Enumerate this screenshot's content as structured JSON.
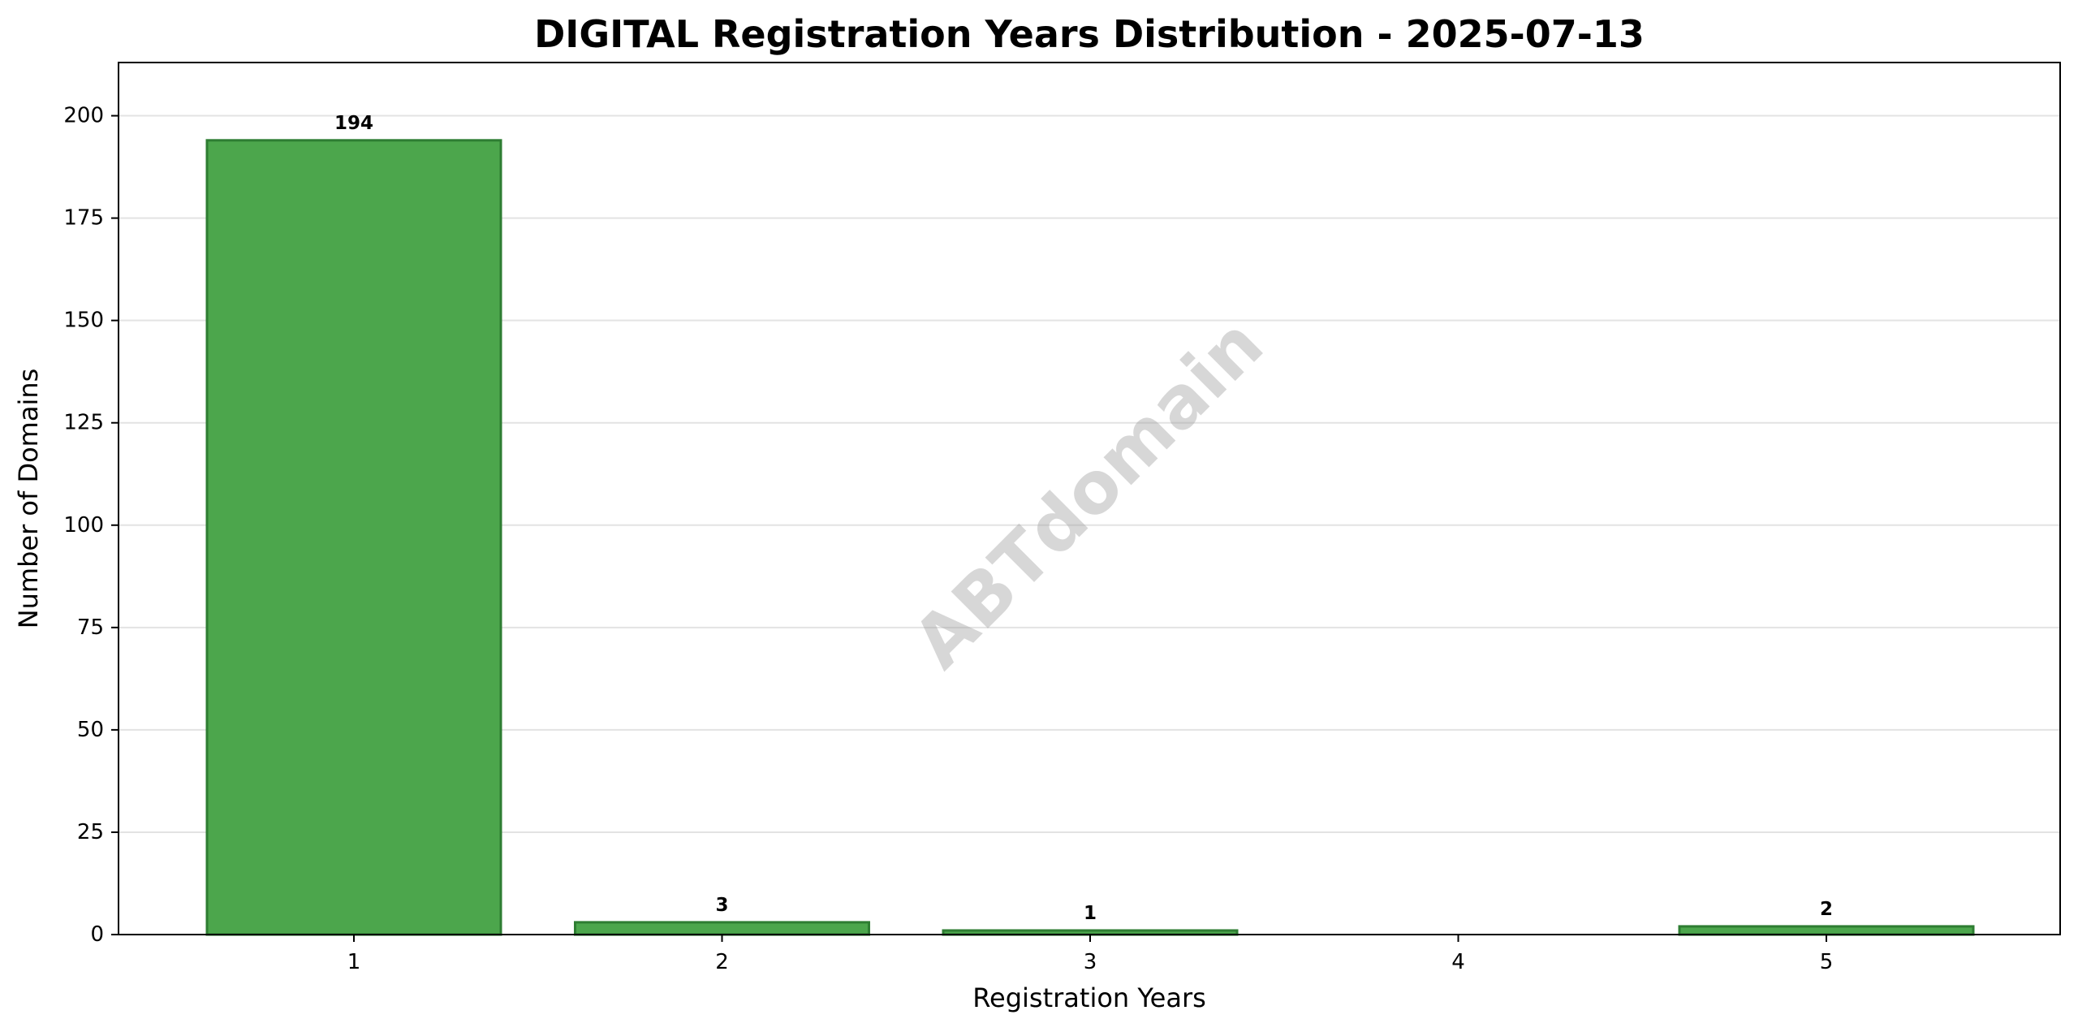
{
  "chart_data": {
    "type": "bar",
    "title": "DIGITAL Registration Years Distribution - 2025-07-13",
    "xlabel": "Registration Years",
    "ylabel": "Number of Domains",
    "categories": [
      "1",
      "2",
      "3",
      "4",
      "5"
    ],
    "values": [
      194,
      3,
      1,
      0,
      2
    ],
    "data_labels": [
      "194",
      "3",
      "1",
      "",
      "2"
    ],
    "ylim": [
      0,
      213
    ],
    "yticks": [
      0,
      25,
      50,
      75,
      100,
      125,
      150,
      175,
      200
    ],
    "grid": "horizontal",
    "legend": "none",
    "bar_color": "#4ca64c",
    "bar_edge_color": "#2e7d32",
    "watermark": "ABTdomain"
  }
}
